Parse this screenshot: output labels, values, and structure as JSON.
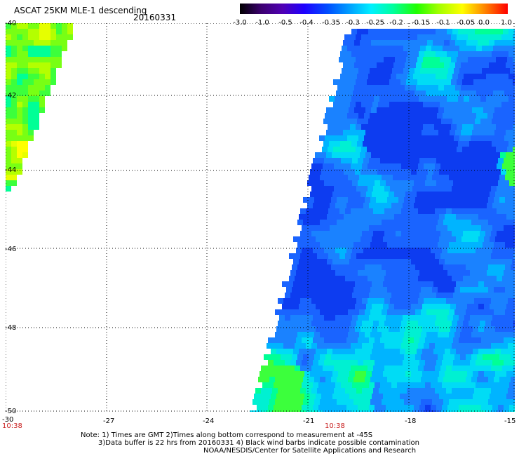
{
  "header": {
    "title": "ASCAT 25KM MLE-1 descending",
    "date": "20160331"
  },
  "colorbar": {
    "labels": [
      "-3.0",
      "-1.0",
      "-0.5",
      "-0.4",
      "-0.35",
      "-0.3",
      "-0.25",
      "-0.2",
      "-0.15",
      "-0.1",
      "-0.05",
      "0.0",
      "1.0"
    ],
    "colors": [
      "#000000",
      "#3c0070",
      "#5000b4",
      "#1e00ff",
      "#0050ff",
      "#00a0ff",
      "#00f0ff",
      "#00ffa0",
      "#20ff00",
      "#a0ff00",
      "#ffff00",
      "#ff8c00",
      "#ff0000"
    ]
  },
  "axes": {
    "lat_labels": [
      "-40",
      "-42",
      "-44",
      "-46",
      "-48",
      "-50"
    ],
    "lon_labels": [
      "-30",
      "-27",
      "-24",
      "-21",
      "-18",
      "-15"
    ],
    "time_labels": [
      "10:38",
      "10:38"
    ]
  },
  "notes": {
    "line1": "Note: 1) Times are GMT 2)Times along bottom correspond to measurement at -45S",
    "line2": "3)Data buffer is 22 hrs from 20160331 4) Black wind barbs indicate possible contamination",
    "line3": "NOAA/NESDIS/Center for Satellite Applications and Research"
  },
  "map": {
    "lon_range": [
      -30,
      -15
    ],
    "lat_range": [
      -50,
      -40
    ],
    "grid": "dotted"
  }
}
